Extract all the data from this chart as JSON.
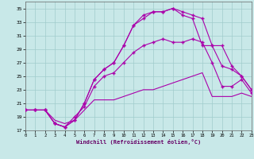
{
  "background_color": "#c8e8e8",
  "grid_color": "#a0cccc",
  "line_color": "#aa00aa",
  "xlabel": "Windchill (Refroidissement éolien,°C)",
  "xlim": [
    0,
    23
  ],
  "ylim": [
    17,
    36
  ],
  "xticks": [
    0,
    1,
    2,
    3,
    4,
    5,
    6,
    7,
    8,
    9,
    10,
    11,
    12,
    13,
    14,
    15,
    16,
    17,
    18,
    19,
    20,
    21,
    22,
    23
  ],
  "yticks": [
    17,
    19,
    21,
    23,
    25,
    27,
    29,
    31,
    33,
    35
  ],
  "curve1_x": [
    0,
    1,
    2,
    3,
    4,
    5,
    6,
    7,
    8,
    9,
    10,
    11,
    12,
    13,
    14,
    15,
    16,
    17,
    18,
    19,
    20,
    21,
    22,
    23
  ],
  "curve1_y": [
    20,
    20,
    20,
    18.5,
    18,
    18.5,
    20,
    21.5,
    21.5,
    21.5,
    22,
    22.5,
    23,
    23,
    23.5,
    24,
    24.5,
    25,
    25.5,
    22,
    22,
    22,
    22.5,
    22
  ],
  "curve2_x": [
    0,
    1,
    2,
    3,
    4,
    5,
    6,
    7,
    8,
    9,
    10,
    11,
    12,
    13,
    14,
    15,
    16,
    17,
    18,
    19,
    20,
    21,
    22,
    23
  ],
  "curve2_y": [
    20,
    20,
    20,
    18,
    17.5,
    19,
    20.5,
    23.5,
    25,
    25.5,
    27,
    28.5,
    29.5,
    30,
    30.5,
    30,
    30,
    30.5,
    30,
    27,
    23.5,
    23.5,
    24.5,
    22.5
  ],
  "curve3_x": [
    0,
    1,
    2,
    3,
    4,
    5,
    6,
    7,
    8,
    9,
    10,
    11,
    12,
    13,
    14,
    15,
    16,
    17,
    18,
    19,
    20,
    21,
    22,
    23
  ],
  "curve3_y": [
    20,
    20,
    20,
    18,
    17.5,
    18.5,
    21,
    24.5,
    26,
    27,
    29.5,
    32.5,
    33.5,
    34.5,
    34.5,
    35,
    34,
    33.5,
    29.5,
    29.5,
    29.5,
    26.5,
    25,
    23
  ],
  "curve4_x": [
    0,
    1,
    2,
    3,
    4,
    5,
    6,
    7,
    8,
    9,
    10,
    11,
    12,
    13,
    14,
    15,
    16,
    17,
    18,
    19,
    20,
    21,
    22,
    23
  ],
  "curve4_y": [
    20,
    20,
    20,
    18,
    17.5,
    18.5,
    21,
    24.5,
    26,
    27,
    29.5,
    32.5,
    34,
    34.5,
    34.5,
    35,
    34.5,
    34,
    33.5,
    29.5,
    26.5,
    26,
    25,
    23
  ]
}
